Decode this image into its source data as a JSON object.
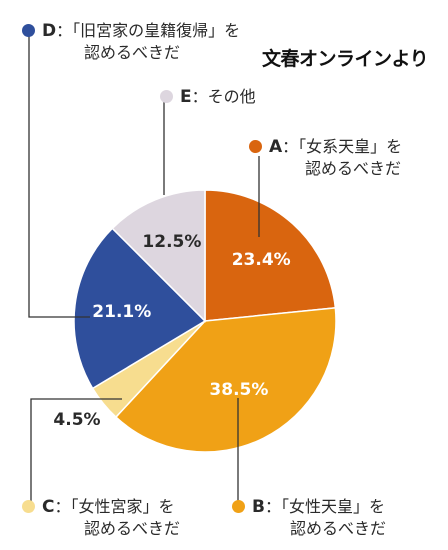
{
  "brand": "文春オンラインより",
  "colors": {
    "A": "#d9650f",
    "B": "#f0a116",
    "C": "#f7dd8f",
    "D": "#2f4f9c",
    "E": "#ddd6df",
    "leader": "#333333"
  },
  "legend": {
    "D": {
      "letter": "D",
      "line1": "：「旧宮家の皇籍復帰」を",
      "line2": "認めるべきだ"
    },
    "E": {
      "letter": "E",
      "line1": "：その他"
    },
    "A": {
      "letter": "A",
      "line1": "：「女系天皇」を",
      "line2": "認めるべきだ"
    },
    "C": {
      "letter": "C",
      "line1": "：「女性宮家」を",
      "line2": "認めるべきだ"
    },
    "B": {
      "letter": "B",
      "line1": "：「女性天皇」を",
      "line2": "認めるべきだ"
    }
  },
  "chart_data": {
    "type": "pie",
    "categories": [
      "A",
      "B",
      "C",
      "D",
      "E"
    ],
    "values": [
      23.4,
      38.5,
      4.5,
      21.1,
      12.5
    ],
    "labels": [
      "23.4%",
      "38.5%",
      "4.5%",
      "21.1%",
      "12.5%"
    ],
    "start": "12 o'clock",
    "direction": "clockwise",
    "legend_placement": "around"
  }
}
